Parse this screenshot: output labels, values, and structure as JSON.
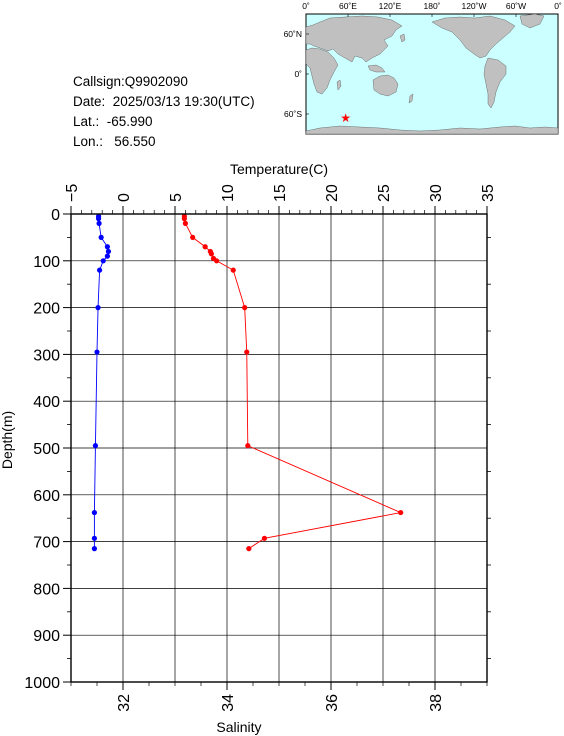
{
  "station": {
    "callsign_label": "Callsign:Q9902090",
    "date_label": "Date:  2025/03/13 19:30(UTC)",
    "lat_label": "Lat.:  -65.990",
    "lon_label": "Lon.:   56.550"
  },
  "map": {
    "lon_labels": [
      "0˚",
      "60˚E",
      "120˚E",
      "180˚",
      "120˚W",
      "60˚W",
      "0˚"
    ],
    "lat_labels": [
      "60˚N",
      "0˚",
      "60˚S"
    ],
    "ocean_color": "#ccffff",
    "land_color": "#c0c0c0",
    "marker_icon": "star-icon",
    "marker_color": "#ff0000",
    "marker_lat": -65.99,
    "marker_lon": 56.55
  },
  "chart_data": {
    "type": "line",
    "ylabel": "Depth(m)",
    "x_top_label": "Temperature(C)",
    "x_bottom_label": "Salinity",
    "ylim": [
      1000,
      0
    ],
    "temp_lim": [
      -5,
      35
    ],
    "sal_lim": [
      31.0,
      39.0
    ],
    "y_ticks": [
      "0",
      "100",
      "200",
      "300",
      "400",
      "500",
      "600",
      "700",
      "800",
      "900",
      "1000"
    ],
    "temp_ticks": [
      "−5",
      "0",
      "5",
      "10",
      "15",
      "20",
      "25",
      "30",
      "35"
    ],
    "sal_ticks": [
      "32",
      "34",
      "36",
      "38"
    ],
    "grid": true,
    "series": [
      {
        "name": "Temperature",
        "axis": "top",
        "color": "#ff0000",
        "points": [
          [
            5.9,
            5
          ],
          [
            5.9,
            10
          ],
          [
            6.0,
            20
          ],
          [
            6.7,
            50
          ],
          [
            7.9,
            70
          ],
          [
            8.4,
            80
          ],
          [
            8.5,
            85
          ],
          [
            8.7,
            95
          ],
          [
            9.0,
            100
          ],
          [
            10.6,
            120
          ],
          [
            11.7,
            200
          ],
          [
            11.9,
            295
          ],
          [
            12.0,
            495
          ],
          [
            26.7,
            638
          ],
          [
            13.6,
            693
          ],
          [
            12.1,
            715
          ]
        ]
      },
      {
        "name": "Salinity",
        "axis": "bottom",
        "color": "#0000ff",
        "points": [
          [
            31.53,
            5
          ],
          [
            31.53,
            10
          ],
          [
            31.54,
            20
          ],
          [
            31.58,
            50
          ],
          [
            31.7,
            70
          ],
          [
            31.72,
            80
          ],
          [
            31.7,
            90
          ],
          [
            31.62,
            100
          ],
          [
            31.55,
            120
          ],
          [
            31.52,
            200
          ],
          [
            31.5,
            295
          ],
          [
            31.47,
            495
          ],
          [
            31.45,
            638
          ],
          [
            31.45,
            693
          ],
          [
            31.45,
            715
          ]
        ]
      }
    ]
  }
}
